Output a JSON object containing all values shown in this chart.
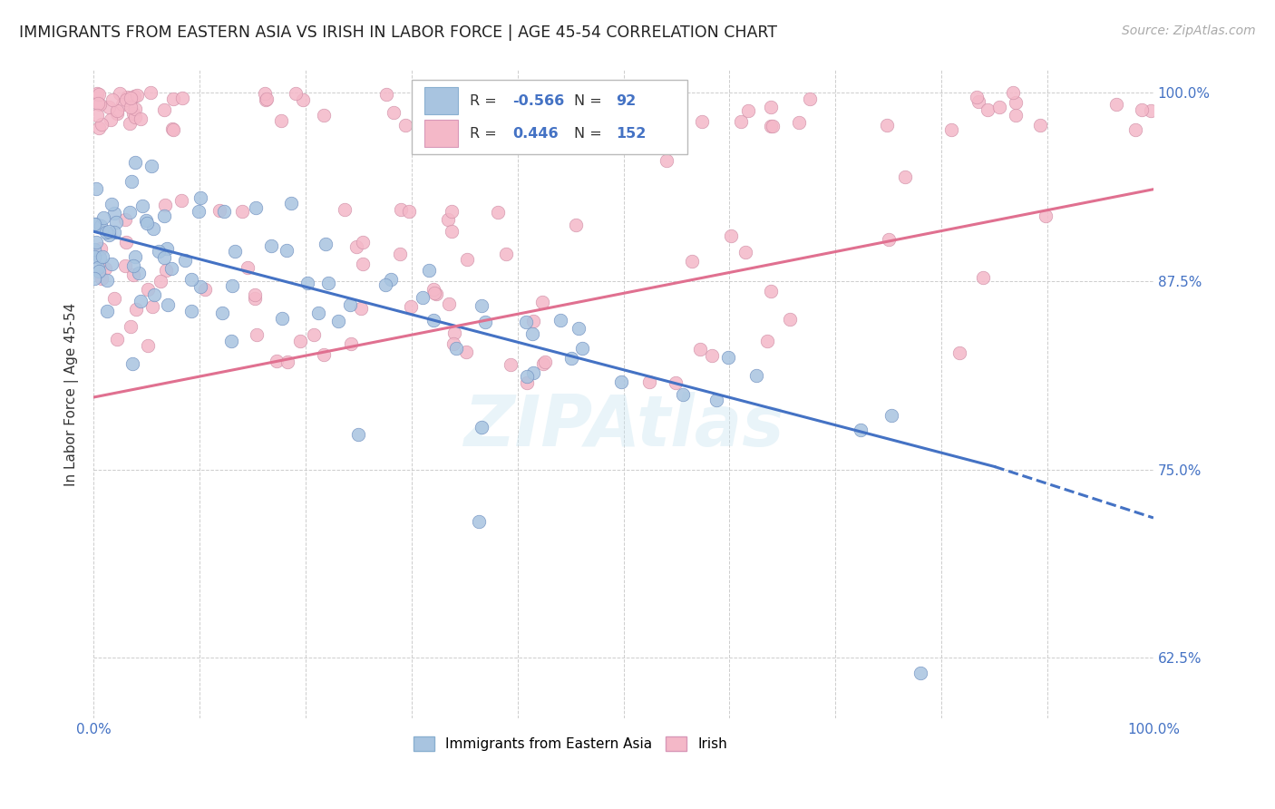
{
  "title": "IMMIGRANTS FROM EASTERN ASIA VS IRISH IN LABOR FORCE | AGE 45-54 CORRELATION CHART",
  "source": "Source: ZipAtlas.com",
  "ylabel": "In Labor Force | Age 45-54",
  "xlim": [
    0.0,
    1.0
  ],
  "ylim": [
    0.585,
    1.015
  ],
  "ytick_positions": [
    0.625,
    0.75,
    0.875,
    1.0
  ],
  "ytick_labels": [
    "62.5%",
    "75.0%",
    "87.5%",
    "100.0%"
  ],
  "blue_color": "#a8c4e0",
  "pink_color": "#f4b8c8",
  "blue_line_color": "#4472c4",
  "pink_line_color": "#e07090",
  "legend_blue_label": "Immigrants from Eastern Asia",
  "legend_pink_label": "Irish",
  "R_blue": -0.566,
  "N_blue": 92,
  "R_pink": 0.446,
  "N_pink": 152,
  "watermark": "ZIPAtlas",
  "blue_line_start_x": 0.0,
  "blue_line_start_y": 0.908,
  "blue_line_end_x": 0.85,
  "blue_line_end_y": 0.752,
  "blue_line_dash_end_x": 1.0,
  "blue_line_dash_end_y": 0.718,
  "pink_line_start_x": 0.0,
  "pink_line_start_y": 0.798,
  "pink_line_end_x": 1.0,
  "pink_line_end_y": 0.936
}
